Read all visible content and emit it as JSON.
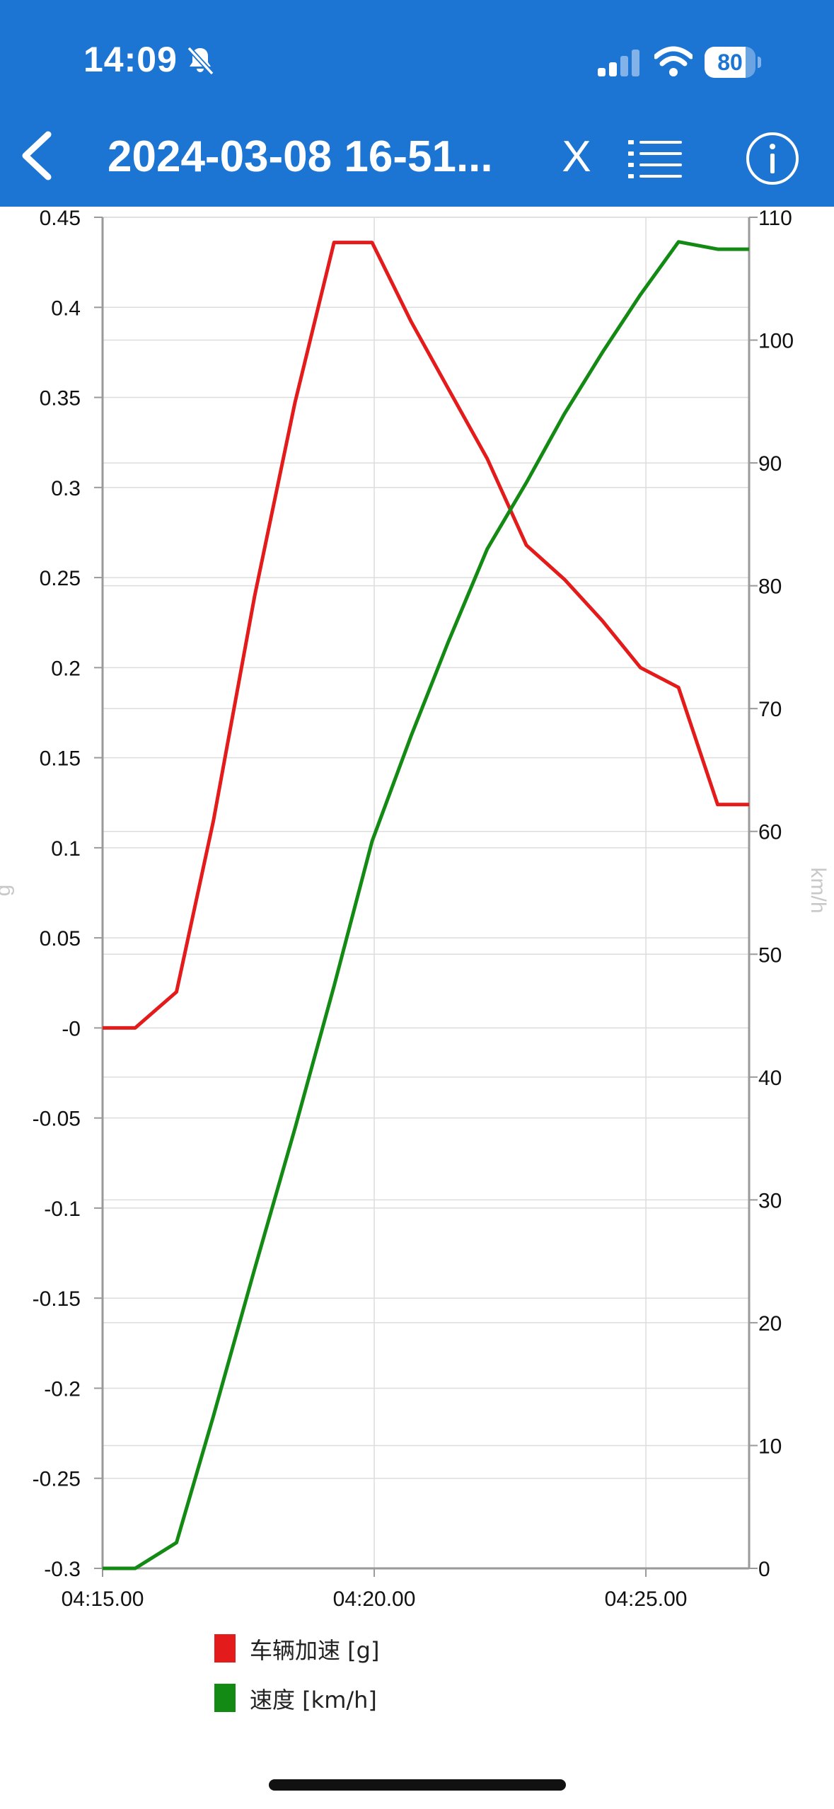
{
  "status_bar": {
    "time": "14:09",
    "battery": "80",
    "battery_level": 0.8
  },
  "nav": {
    "title": "2024-03-08 16-51...",
    "close_label": "X",
    "back_icon": "chevron-left-icon",
    "list_icon": "list-icon",
    "info_icon": "info-icon"
  },
  "colors": {
    "appbar": "#1c74d3",
    "acceleration": "#e31b1b",
    "speed": "#138a13",
    "grid": "#dddddd",
    "axis": "#9a9a9a"
  },
  "chart_data": {
    "type": "line",
    "x_tick_labels": [
      "04:15.00",
      "04:20.00",
      "04:25.00"
    ],
    "x_ticks_seconds": [
      255,
      260,
      265
    ],
    "x_range": [
      255,
      266.9
    ],
    "y_left": {
      "label": "g",
      "range": [
        -0.3,
        0.45
      ],
      "ticks": [
        0.45,
        0.4,
        0.35,
        0.3,
        0.25,
        0.2,
        0.15,
        0.1,
        0.05,
        0,
        -0.05,
        -0.1,
        -0.15,
        -0.2,
        -0.25,
        -0.3
      ],
      "tick_labels": [
        "0.45",
        "0.4",
        "0.35",
        "0.3",
        "0.25",
        "0.2",
        "0.15",
        "0.1",
        "0.05",
        "-0",
        "-0.05",
        "-0.1",
        "-0.15",
        "-0.2",
        "-0.25",
        "-0.3"
      ]
    },
    "y_right": {
      "label": "km/h",
      "range": [
        0,
        110
      ],
      "ticks": [
        110,
        100,
        90,
        80,
        70,
        60,
        50,
        40,
        30,
        20,
        10,
        0
      ],
      "tick_labels": [
        "110",
        "100",
        "90",
        "80",
        "70",
        "60",
        "50",
        "40",
        "30",
        "20",
        "10",
        "0"
      ]
    },
    "grid": true,
    "legend_position": "bottom-left",
    "series": [
      {
        "name": "车辆加速 [g]",
        "axis": "left",
        "color": "#e31b1b",
        "x": [
          255.0,
          255.6,
          256.36,
          257.04,
          257.8,
          258.54,
          259.26,
          259.96,
          260.68,
          261.36,
          262.08,
          262.8,
          263.5,
          264.2,
          264.9,
          265.6,
          266.32,
          266.9
        ],
        "y": [
          0.0,
          0.0,
          0.02,
          0.115,
          0.24,
          0.347,
          0.436,
          0.436,
          0.392,
          0.355,
          0.316,
          0.268,
          0.249,
          0.226,
          0.2,
          0.189,
          0.124,
          0.124
        ]
      },
      {
        "name": "速度 [km/h]",
        "axis": "right",
        "color": "#138a13",
        "x": [
          255.0,
          255.6,
          256.36,
          257.04,
          257.8,
          258.54,
          259.26,
          259.96,
          260.68,
          261.36,
          262.08,
          262.8,
          263.5,
          264.2,
          264.9,
          265.6,
          266.32,
          266.9
        ],
        "y": [
          0.0,
          0.0,
          2.1,
          12.4,
          24.4,
          35.8,
          47.4,
          59.2,
          67.8,
          75.4,
          83.0,
          88.4,
          94.0,
          99.0,
          103.7,
          108.0,
          107.4,
          107.4
        ]
      }
    ]
  }
}
